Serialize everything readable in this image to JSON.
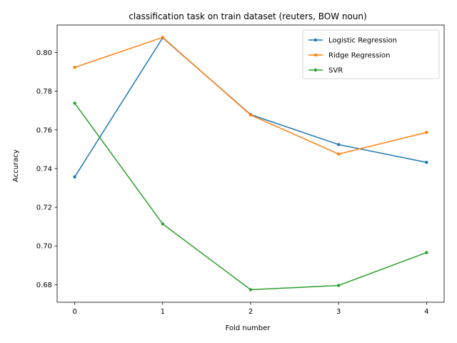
{
  "chart_data": {
    "type": "line",
    "title": "classification task on train dataset (reuters, BOW noun)",
    "xlabel": "Fold number",
    "ylabel": "Accuracy",
    "x": [
      0,
      1,
      2,
      3,
      4
    ],
    "xticks": [
      "0",
      "1",
      "2",
      "3",
      "4"
    ],
    "yticks": [
      "0.68",
      "0.70",
      "0.72",
      "0.74",
      "0.76",
      "0.78",
      "0.80"
    ],
    "xlim": [
      -0.2,
      4.2
    ],
    "ylim": [
      0.6709,
      0.8142
    ],
    "grid": false,
    "legend_position": "top-right",
    "series": [
      {
        "name": "Logistic Regression",
        "color": "#1f77b4",
        "values": [
          0.7357,
          0.8076,
          0.7679,
          0.7524,
          0.7432
        ]
      },
      {
        "name": "Ridge Regression",
        "color": "#ff7f0e",
        "values": [
          0.7923,
          0.8078,
          0.7677,
          0.7475,
          0.7587
        ]
      },
      {
        "name": "SVR",
        "color": "#2ca02c",
        "values": [
          0.7738,
          0.7114,
          0.6774,
          0.6796,
          0.6966
        ]
      }
    ]
  }
}
